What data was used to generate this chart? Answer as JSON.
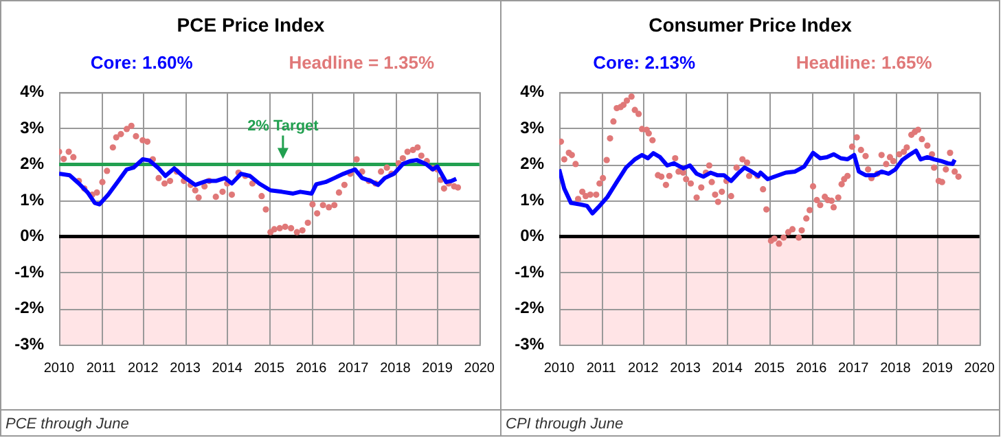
{
  "chart_data": [
    {
      "type": "line",
      "title": "PCE Price Index",
      "legend": "top",
      "grid": true,
      "xlim": [
        2010,
        2020
      ],
      "xticks": [
        2010,
        2011,
        2012,
        2013,
        2014,
        2015,
        2016,
        2017,
        2018,
        2019,
        2020
      ],
      "ylim": [
        -3,
        4
      ],
      "yticks": [
        {
          "value": -3,
          "label": "-3%"
        },
        {
          "value": -2,
          "label": "-2%"
        },
        {
          "value": -1,
          "label": "-1%"
        },
        {
          "value": 0,
          "label": "0%"
        },
        {
          "value": 1,
          "label": "1%"
        },
        {
          "value": 2,
          "label": "2%"
        },
        {
          "value": 3,
          "label": "3%"
        },
        {
          "value": 4,
          "label": "4%"
        }
      ],
      "ref_lines": [
        {
          "axis": "y",
          "value": 0,
          "color": "#000000"
        },
        {
          "axis": "y",
          "value": 2,
          "label": "2% Target",
          "color": "#22a050"
        }
      ],
      "bands": [
        {
          "axis": "y",
          "from": -3,
          "to": 0,
          "color": "#ffe4e6"
        }
      ],
      "annotations": [
        "PCE through June"
      ],
      "series": [
        {
          "name": "Core: 1.60%",
          "type": "line",
          "color": "#0000ff",
          "x": [
            2010,
            2010.25,
            2010.47,
            2010.68,
            2010.85,
            2010.96,
            2011.17,
            2011.39,
            2011.61,
            2011.77,
            2011.99,
            2012.15,
            2012.37,
            2012.53,
            2012.74,
            2012.96,
            2013.24,
            2013.51,
            2013.73,
            2013.95,
            2014.11,
            2014.33,
            2014.54,
            2014.76,
            2015.03,
            2015.3,
            2015.57,
            2015.74,
            2016.01,
            2016.12,
            2016.34,
            2016.55,
            2016.77,
            2017.04,
            2017.21,
            2017.42,
            2017.59,
            2017.75,
            2017.97,
            2018.18,
            2018.35,
            2018.51,
            2018.73,
            2018.89,
            2019,
            2019.21,
            2019.34,
            2019.45
          ],
          "values": [
            1.74,
            1.7,
            1.47,
            1.22,
            0.93,
            0.89,
            1.16,
            1.51,
            1.86,
            1.91,
            2.14,
            2.11,
            1.89,
            1.68,
            1.89,
            1.66,
            1.43,
            1.54,
            1.54,
            1.62,
            1.47,
            1.74,
            1.68,
            1.47,
            1.28,
            1.24,
            1.19,
            1.24,
            1.19,
            1.45,
            1.51,
            1.62,
            1.74,
            1.86,
            1.62,
            1.54,
            1.43,
            1.62,
            1.74,
            2.01,
            2.09,
            2.12,
            2.01,
            1.86,
            1.94,
            1.51,
            1.54,
            1.6
          ]
        },
        {
          "name": "Headline = 1.35%",
          "type": "scatter",
          "marker": "circle",
          "color": "#e07878",
          "x": [
            2010,
            2010.11,
            2010.23,
            2010.34,
            2010.47,
            2010.6,
            2010.79,
            2010.9,
            2011.03,
            2011.14,
            2011.28,
            2011.36,
            2011.47,
            2011.61,
            2011.72,
            2011.83,
            2011.99,
            2012.1,
            2012.23,
            2012.37,
            2012.51,
            2012.64,
            2012.8,
            2012.97,
            2013.13,
            2013.24,
            2013.32,
            2013.46,
            2013.57,
            2013.73,
            2013.89,
            2014,
            2014.11,
            2014.27,
            2014.43,
            2014.6,
            2014.82,
            2014.92,
            2015.03,
            2015.12,
            2015.25,
            2015.38,
            2015.52,
            2015.66,
            2015.79,
            2015.92,
            2016.03,
            2016.14,
            2016.28,
            2016.42,
            2016.55,
            2016.66,
            2016.79,
            2016.93,
            2017.08,
            2017.21,
            2017.37,
            2017.53,
            2017.66,
            2017.8,
            2017.91,
            2018.08,
            2018.18,
            2018.29,
            2018.42,
            2018.53,
            2018.62,
            2018.75,
            2018.89,
            2019,
            2019.08,
            2019.16,
            2019.27,
            2019.4,
            2019.49
          ],
          "values": [
            2.35,
            2.15,
            2.35,
            2.2,
            1.54,
            1.33,
            1.16,
            1.22,
            1.51,
            1.82,
            2.47,
            2.75,
            2.84,
            2.98,
            3.07,
            2.78,
            2.67,
            2.63,
            2.14,
            1.62,
            1.47,
            1.54,
            1.8,
            1.54,
            1.43,
            1.28,
            1.08,
            1.39,
            1.54,
            1.1,
            1.24,
            1.47,
            1.16,
            1.77,
            1.68,
            1.47,
            1.12,
            0.75,
            0.12,
            0.2,
            0.23,
            0.27,
            0.23,
            0.12,
            0.17,
            0.38,
            0.89,
            0.64,
            0.87,
            0.81,
            0.87,
            1.22,
            1.43,
            1.74,
            2.14,
            1.8,
            1.54,
            1.47,
            1.8,
            1.91,
            1.74,
            2.03,
            2.17,
            2.35,
            2.4,
            2.47,
            2.24,
            2.09,
            1.89,
            1.86,
            1.57,
            1.33,
            1.47,
            1.39,
            1.36
          ]
        }
      ]
    },
    {
      "type": "line",
      "title": "Consumer Price Index",
      "legend": "top",
      "grid": true,
      "xlim": [
        2010,
        2020
      ],
      "xticks": [
        2010,
        2011,
        2012,
        2013,
        2014,
        2015,
        2016,
        2017,
        2018,
        2019,
        2020
      ],
      "ylim": [
        -3,
        4
      ],
      "yticks": [
        {
          "value": -3,
          "label": "-3%"
        },
        {
          "value": -2,
          "label": "-2%"
        },
        {
          "value": -1,
          "label": "-1%"
        },
        {
          "value": 0,
          "label": "0%"
        },
        {
          "value": 1,
          "label": "1%"
        },
        {
          "value": 2,
          "label": "2%"
        },
        {
          "value": 3,
          "label": "3%"
        },
        {
          "value": 4,
          "label": "4%"
        }
      ],
      "ref_lines": [
        {
          "axis": "y",
          "value": 0,
          "color": "#000000"
        }
      ],
      "bands": [
        {
          "axis": "y",
          "from": -3,
          "to": 0,
          "color": "#ffe4e6"
        }
      ],
      "annotations": [
        "CPI through June"
      ],
      "series": [
        {
          "name": "Core: 2.13%",
          "type": "line",
          "color": "#0000ff",
          "x": [
            2010,
            2010.12,
            2010.28,
            2010.5,
            2010.66,
            2010.79,
            2010.93,
            2011.15,
            2011.37,
            2011.59,
            2011.8,
            2011.97,
            2012.11,
            2012.24,
            2012.4,
            2012.57,
            2012.73,
            2012.95,
            2013.11,
            2013.27,
            2013.43,
            2013.6,
            2013.76,
            2013.92,
            2014.09,
            2014.25,
            2014.41,
            2014.58,
            2014.74,
            2014.79,
            2014.96,
            2015.17,
            2015.39,
            2015.61,
            2015.83,
            2016.04,
            2016.21,
            2016.37,
            2016.53,
            2016.7,
            2016.86,
            2017.02,
            2017.13,
            2017.29,
            2017.51,
            2017.67,
            2017.84,
            2018,
            2018.16,
            2018.33,
            2018.49,
            2018.6,
            2018.76,
            2018.92,
            2019.09,
            2019.25,
            2019.36,
            2019.41
          ],
          "values": [
            1.86,
            1.33,
            0.93,
            0.89,
            0.85,
            0.64,
            0.81,
            1.1,
            1.51,
            1.91,
            2.14,
            2.26,
            2.17,
            2.31,
            2.2,
            1.97,
            2.03,
            1.89,
            1.97,
            1.74,
            1.66,
            1.77,
            1.7,
            1.7,
            1.54,
            1.74,
            1.91,
            1.8,
            1.68,
            1.77,
            1.59,
            1.68,
            1.77,
            1.8,
            1.94,
            2.32,
            2.17,
            2.2,
            2.28,
            2.17,
            2.14,
            2.26,
            1.8,
            1.7,
            1.7,
            1.8,
            1.74,
            1.86,
            2.12,
            2.26,
            2.38,
            2.14,
            2.2,
            2.14,
            2.09,
            2.03,
            2.01,
            2.13
          ]
        },
        {
          "name": "Headline: 1.65%",
          "type": "scatter",
          "marker": "circle",
          "color": "#e07878",
          "x": [
            2010.04,
            2010.12,
            2010.23,
            2010.3,
            2010.39,
            2010.45,
            2010.55,
            2010.63,
            2010.74,
            2010.88,
            2010.96,
            2011.04,
            2011.13,
            2011.21,
            2011.29,
            2011.37,
            2011.46,
            2011.53,
            2011.61,
            2011.72,
            2011.8,
            2011.89,
            2011.97,
            2012.08,
            2012.13,
            2012.22,
            2012.35,
            2012.43,
            2012.54,
            2012.62,
            2012.76,
            2012.84,
            2012.95,
            2013.02,
            2013.13,
            2013.27,
            2013.38,
            2013.49,
            2013.57,
            2013.63,
            2013.71,
            2013.78,
            2013.87,
            2013.98,
            2014.09,
            2014.22,
            2014.36,
            2014.47,
            2014.52,
            2014.72,
            2014.85,
            2014.93,
            2015.04,
            2015.12,
            2015.23,
            2015.34,
            2015.45,
            2015.55,
            2015.7,
            2015.77,
            2015.88,
            2015.96,
            2016.04,
            2016.13,
            2016.21,
            2016.32,
            2016.39,
            2016.48,
            2016.53,
            2016.64,
            2016.72,
            2016.78,
            2016.86,
            2016.97,
            2017.08,
            2017.18,
            2017.29,
            2017.35,
            2017.43,
            2017.57,
            2017.67,
            2017.78,
            2017.87,
            2017.95,
            2018.09,
            2018.2,
            2018.27,
            2018.38,
            2018.46,
            2018.54,
            2018.63,
            2018.76,
            2018.87,
            2018.92,
            2019.03,
            2019.11,
            2019.2,
            2019.3,
            2019.41,
            2019.5
          ],
          "values": [
            2.63,
            2.14,
            2.32,
            2.26,
            2.01,
            1.04,
            1.24,
            1.12,
            1.16,
            1.16,
            1.47,
            1.62,
            2.12,
            2.72,
            3.19,
            3.56,
            3.59,
            3.65,
            3.77,
            3.88,
            3.51,
            3.4,
            2.98,
            2.96,
            2.86,
            2.67,
            1.7,
            1.66,
            1.43,
            1.68,
            2.17,
            1.8,
            1.77,
            1.59,
            1.47,
            1.08,
            1.36,
            1.77,
            1.97,
            1.51,
            1.16,
            0.96,
            1.24,
            1.54,
            1.12,
            1.91,
            2.14,
            2.05,
            1.68,
            1.68,
            1.31,
            0.75,
            -0.12,
            -0.06,
            -0.2,
            -0.03,
            0.12,
            0.2,
            -0.03,
            0.17,
            0.5,
            0.73,
            1.39,
            1.01,
            0.87,
            1.1,
            1.01,
            0.99,
            0.81,
            1.08,
            1.45,
            1.59,
            1.68,
            2.49,
            2.75,
            2.4,
            2.23,
            1.86,
            1.62,
            1.74,
            2.26,
            2.01,
            2.2,
            2.09,
            2.28,
            2.35,
            2.47,
            2.82,
            2.9,
            2.96,
            2.7,
            2.52,
            2.28,
            1.91,
            1.54,
            1.51,
            1.86,
            2.32,
            1.8,
            1.66
          ]
        }
      ]
    }
  ]
}
